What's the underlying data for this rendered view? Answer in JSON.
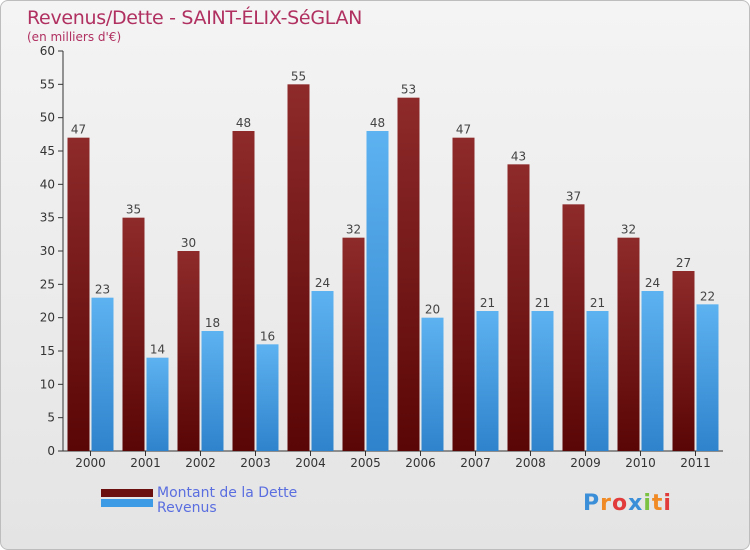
{
  "title": "Revenus/Dette - SAINT-ÉLIX-SéGLAN",
  "subtitle": "(en milliers d'€)",
  "chart_data": {
    "type": "bar",
    "categories": [
      "2000",
      "2001",
      "2002",
      "2003",
      "2004",
      "2005",
      "2006",
      "2007",
      "2008",
      "2009",
      "2010",
      "2011"
    ],
    "series": [
      {
        "name": "Montant de la Dette",
        "color": "#7a1c1c",
        "values": [
          47,
          35,
          30,
          48,
          55,
          32,
          53,
          47,
          43,
          37,
          32,
          27
        ]
      },
      {
        "name": "Revenus",
        "color": "#4aa3e6",
        "values": [
          23,
          14,
          18,
          16,
          24,
          48,
          20,
          21,
          21,
          21,
          24,
          22
        ]
      }
    ],
    "ylim": [
      0,
      60
    ],
    "yticks": [
      0,
      5,
      10,
      15,
      20,
      25,
      30,
      35,
      40,
      45,
      50,
      55,
      60
    ],
    "grid": false,
    "legend_position": "bottom-left"
  },
  "legend": [
    {
      "label": "Montant de la Dette",
      "color": "#6b0f0f"
    },
    {
      "label": "Revenus",
      "color": "#3d9be6"
    }
  ],
  "logo": {
    "text": "Proxiti"
  }
}
